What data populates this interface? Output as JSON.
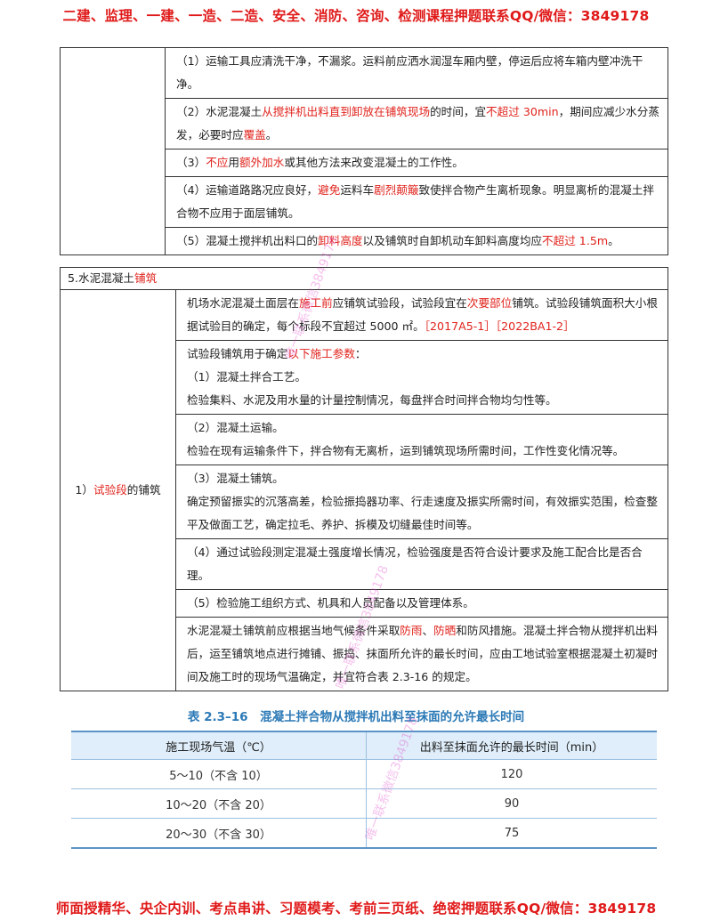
{
  "banner_top": "二建、监理、一建、一造、二造、安全、消防、咨询、检测课程押题联系QQ/微信：3849178",
  "banner_bottom": "师面授精华、央企内训、考点串讲、习题模考、考前三页纸、绝密押题联系QQ/微信：3849178",
  "table1": {
    "r1": "（1）运输工具应清洗干净，不漏浆。运料前应洒水润湿车厢内壁，停运后应将车箱内壁冲洗干净。",
    "r2": {
      "a": "（2）水泥混凝土",
      "b": "从搅拌机出料直到卸放在铺筑现场",
      "c": "的时间，宜",
      "d": "不超过 30min",
      "e": "，期间应减少水分蒸发，必要时应",
      "f": "覆盖",
      "g": "。"
    },
    "r3": {
      "a": "（3）",
      "b": "不应",
      "c": "用",
      "d": "额外加水",
      "e": "或其他方法来改变混凝土的工作性。"
    },
    "r4": {
      "a": "（4）运输道路路况应良好，",
      "b": "避免",
      "c": "运料车",
      "d": "剧烈颠簸",
      "e": "致使拌合物产生离析现象。明显离析的混凝土拌合物不应用于面层铺筑。"
    },
    "r5": {
      "a": "（5）混凝土搅拌机出料口的",
      "b": "卸料高度",
      "c": "以及铺筑时自卸机动车卸料高度均应",
      "d": "不超过 1.5m",
      "e": "。"
    }
  },
  "table2": {
    "header": {
      "a": "5.水泥混凝土",
      "b": "铺筑"
    },
    "left": {
      "a": "1）",
      "b": "试验段",
      "c": "的铺筑"
    },
    "r1": {
      "a": "机场水泥混凝土面层在",
      "b": "施工前",
      "c": "应铺筑试验段，试验段宜在",
      "d": "次要部位",
      "e": "铺筑。试验段铺筑面积大小根据试验目的确定，每个标段不宜超过 5000 ㎡。",
      "f": "［2017A5-1］［2022BA1-2］"
    },
    "r2": {
      "a": "试验段铺筑用于确定",
      "b": "以下施工参数",
      "c": "：",
      "d": "（1）混凝土拌合工艺。",
      "e": "检验集料、水泥及用水量的计量控制情况，每盘拌合时间拌合物均匀性等。"
    },
    "r3": {
      "a": "（2）混凝土运输。",
      "b": "检验在现有运输条件下，拌合物有无离析，运到铺筑现场所需时间，工作性变化情况等。"
    },
    "r4": {
      "a": "（3）混凝土铺筑。",
      "b": "确定预留振实的沉落高差，检验振捣器功率、行走速度及振实所需时间，有效振实范围，检查整平及做面工艺，确定拉毛、养护、拆模及切缝最佳时间等。"
    },
    "r5": "（4）通过试验段测定混凝土强度增长情况，检验强度是否符合设计要求及施工配合比是否合理。",
    "r6": "（5）检验施工组织方式、机具和人员配备以及管理体系。",
    "r7": {
      "a": "水泥混凝土铺筑前应根据当地气候条件采取",
      "b": "防雨",
      "c": "、",
      "d": "防晒",
      "e": "和防风措施。混凝土拌合物从搅拌机出料后，运至铺筑地点进行摊铺、振捣、抹面所允许的最长时间，应由工地试验室根据混凝土初凝时间及施工时的现场气温确定，并宜符合表 2.3-16 的规定。"
    }
  },
  "caption": "表 2.3–16　混凝土拌合物从搅拌机出料至抹面的允许最长时间",
  "data_table": {
    "headers": [
      "施工现场气温（℃）",
      "出料至抹面允许的最长时间（min）"
    ],
    "rows": [
      [
        "5～10（不含 10）",
        "120"
      ],
      [
        "10～20（不含 20）",
        "90"
      ],
      [
        "20～30（不含 30）",
        "75"
      ]
    ]
  },
  "watermarks": [
    "唯一联系微信3849178",
    "唯一联系微信3849178",
    "唯一联系微信3849178"
  ],
  "colors": {
    "highlight": "#e0231c",
    "banner": "#e01919",
    "caption": "#2b79b6",
    "table_header_bg": "#dfeefa"
  }
}
